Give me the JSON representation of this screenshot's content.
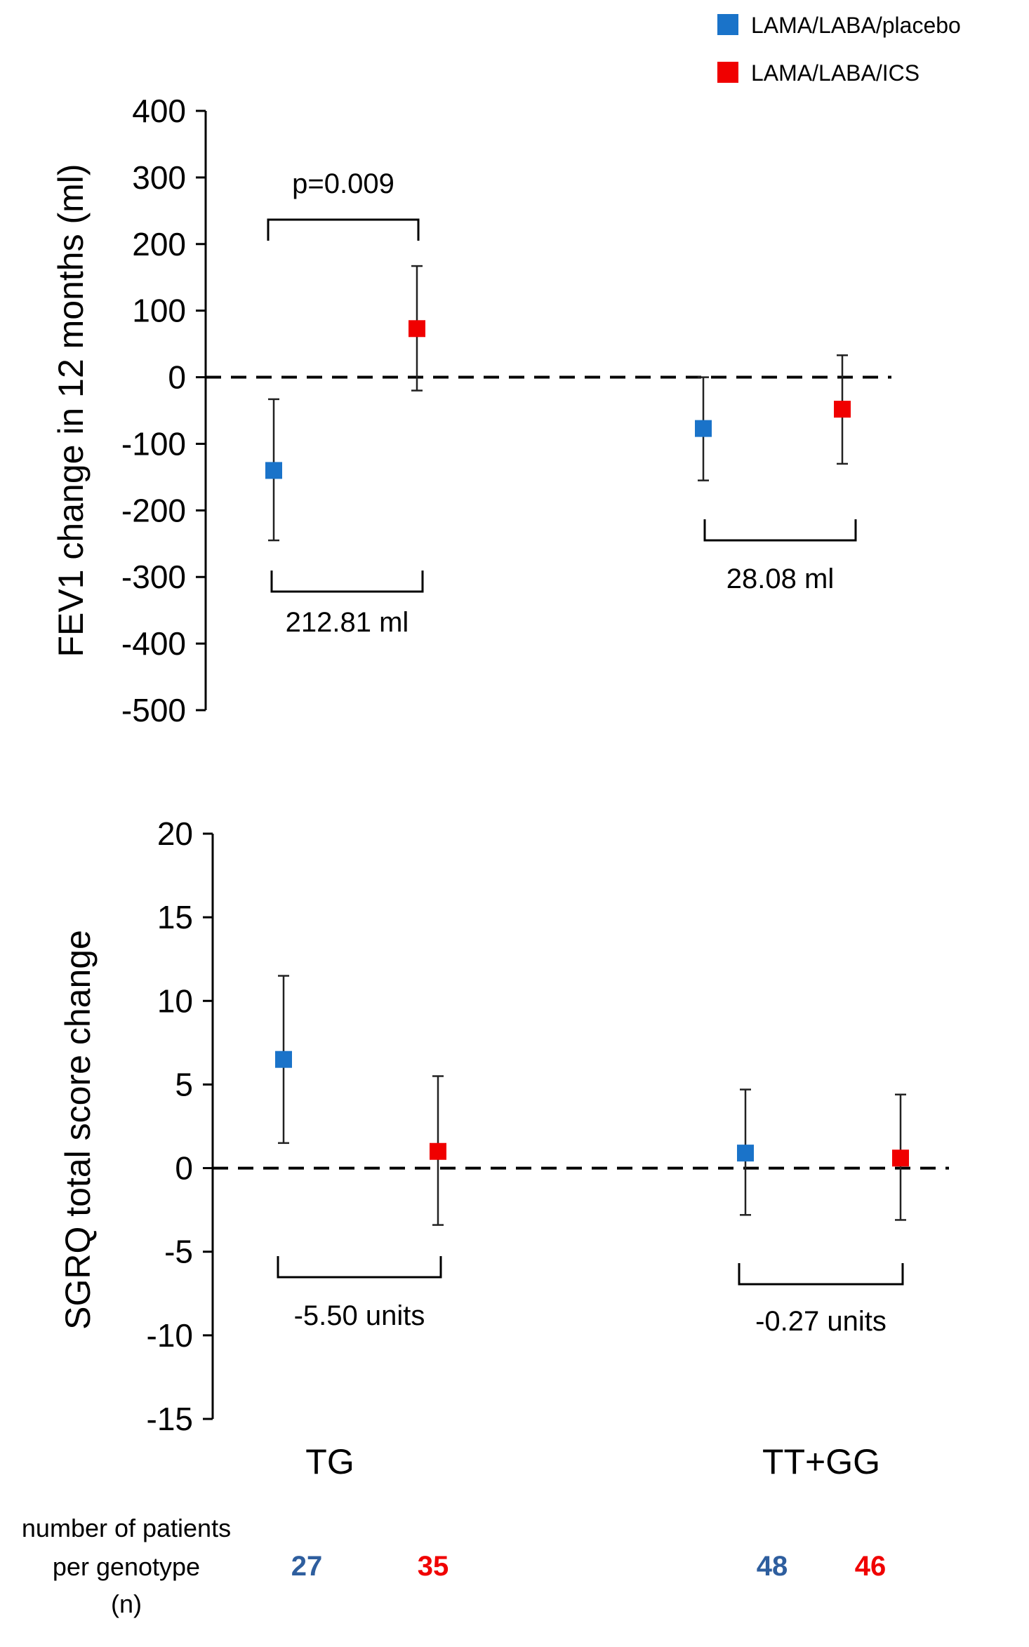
{
  "colors": {
    "placebo": "#1a73c9",
    "ics": "#f00000",
    "count_placebo": "#2e5e9e",
    "count_ics": "#f00000"
  },
  "legend": {
    "items": [
      {
        "name": "LAMA/LABA/placebo",
        "color_key": "placebo"
      },
      {
        "name": "LAMA/LABA/ICS",
        "color_key": "ics"
      }
    ]
  },
  "chart_data": [
    {
      "type": "scatter",
      "ylabel": "FEV1 change in 12 months (ml)",
      "ylim": [
        -500,
        400
      ],
      "yticks": [
        400,
        300,
        200,
        100,
        0,
        -100,
        -200,
        -300,
        -400,
        -500
      ],
      "categories": [
        "TG",
        "TT+GG"
      ],
      "series": [
        {
          "name": "LAMA/LABA/placebo",
          "values": [
            -140,
            -77
          ],
          "err_low": [
            -245,
            -155
          ],
          "err_high": [
            -33,
            0
          ]
        },
        {
          "name": "LAMA/LABA/ICS",
          "values": [
            73,
            -48
          ],
          "err_low": [
            -20,
            -130
          ],
          "err_high": [
            167,
            33
          ]
        }
      ],
      "annotations": [
        {
          "text": "p=0.009",
          "group": 0,
          "side": "above"
        },
        {
          "text": "212.81 ml",
          "group": 0,
          "side": "below"
        },
        {
          "text": "28.08 ml",
          "group": 1,
          "side": "below"
        }
      ]
    },
    {
      "type": "scatter",
      "ylabel": "SGRQ total score change",
      "ylim": [
        -15,
        20
      ],
      "yticks": [
        20,
        15,
        10,
        5,
        0,
        -5,
        -10,
        -15
      ],
      "categories": [
        "TG",
        "TT+GG"
      ],
      "series": [
        {
          "name": "LAMA/LABA/placebo",
          "values": [
            6.5,
            0.9
          ],
          "err_low": [
            1.5,
            -2.8
          ],
          "err_high": [
            11.5,
            4.7
          ]
        },
        {
          "name": "LAMA/LABA/ICS",
          "values": [
            1.0,
            0.6
          ],
          "err_low": [
            -3.4,
            -3.1
          ],
          "err_high": [
            5.5,
            4.4
          ]
        }
      ],
      "annotations": [
        {
          "text": "-5.50 units",
          "group": 0,
          "side": "below"
        },
        {
          "text": "-0.27 units",
          "group": 1,
          "side": "below"
        }
      ]
    }
  ],
  "group_labels": [
    "TG",
    "TT+GG"
  ],
  "footer": {
    "label_lines": [
      "number of patients",
      "per genotype",
      "(n)"
    ],
    "counts": [
      {
        "value": "27",
        "color_key": "count_placebo"
      },
      {
        "value": "35",
        "color_key": "count_ics"
      },
      {
        "value": "48",
        "color_key": "count_placebo"
      },
      {
        "value": "46",
        "color_key": "count_ics"
      }
    ]
  }
}
